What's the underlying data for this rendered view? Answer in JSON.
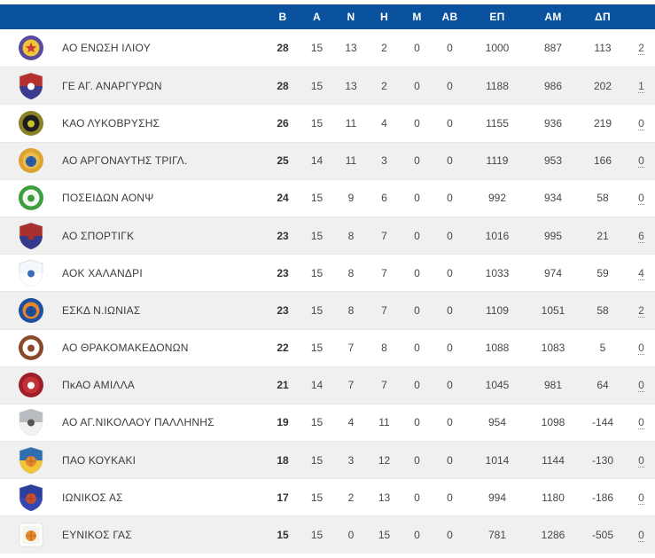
{
  "table": {
    "header": {
      "bg": "#0a519e",
      "text_color": "#ffffff",
      "columns": [
        "Β",
        "Α",
        "Ν",
        "Η",
        "Μ",
        "ΑΒ",
        "ΕΠ",
        "ΑΜ",
        "ΔΠ"
      ]
    },
    "row_colors": {
      "odd": "#ffffff",
      "even": "#f0f0f0",
      "border": "#e8e8e8"
    },
    "rows": [
      {
        "team": "ΑΟ ΕΝΩΣΗ ΙΛΙΟΥ",
        "logo": {
          "icon": "club-badge-enosi-iliou",
          "type": "circle",
          "outer": "#5a4a9e",
          "inner": "#f0c53a",
          "accent": "#cc3a3a",
          "glyph": "star"
        },
        "stats": [
          "28",
          "15",
          "13",
          "2",
          "0",
          "0",
          "1000",
          "887",
          "113"
        ],
        "extra": "2"
      },
      {
        "team": "ΓΕ ΑΓ. ΑΝΑΡΓΥΡΩΝ",
        "logo": {
          "icon": "club-badge-ag-anargyron",
          "type": "shield",
          "outer": "#b5302c",
          "inner": "#3a3a8e",
          "accent": "#ffffff",
          "glyph": "dot"
        },
        "stats": [
          "28",
          "15",
          "13",
          "2",
          "0",
          "0",
          "1188",
          "986",
          "202"
        ],
        "extra": "1"
      },
      {
        "team": "ΚΑΟ ΛΥΚΟΒΡΥΣΗΣ",
        "logo": {
          "icon": "club-badge-lykovrysi",
          "type": "circle",
          "outer": "#8a8226",
          "inner": "#1d1d1d",
          "accent": "#c9c12a",
          "glyph": "dot"
        },
        "stats": [
          "26",
          "15",
          "11",
          "4",
          "0",
          "0",
          "1155",
          "936",
          "219"
        ],
        "extra": "0"
      },
      {
        "team": "ΑΟ ΑΡΓΟΝΑΥΤΗΣ ΤΡΙΓΛ.",
        "logo": {
          "icon": "club-badge-argonaftis",
          "type": "circle",
          "outer": "#dca32e",
          "inner": "#e9bc52",
          "accent": "#2c5faa",
          "glyph": "ball"
        },
        "stats": [
          "25",
          "14",
          "11",
          "3",
          "0",
          "0",
          "1119",
          "953",
          "166"
        ],
        "extra": "0"
      },
      {
        "team": "ΠΟΣΕΙΔΩΝ ΑΟΝΨ",
        "logo": {
          "icon": "club-badge-poseidon",
          "type": "circle",
          "outer": "#3e9e3e",
          "inner": "#f2f8f2",
          "accent": "#3e9e3e",
          "glyph": "dot"
        },
        "stats": [
          "24",
          "15",
          "9",
          "6",
          "0",
          "0",
          "992",
          "934",
          "58"
        ],
        "extra": "0"
      },
      {
        "team": "ΑΟ ΣΠΟΡΤΙΓΚ",
        "logo": {
          "icon": "club-badge-sporting",
          "type": "shield",
          "outer": "#a8302e",
          "inner": "#343a8c",
          "accent": "#a8302e",
          "glyph": "dot"
        },
        "stats": [
          "23",
          "15",
          "8",
          "7",
          "0",
          "0",
          "1016",
          "995",
          "21"
        ],
        "extra": "6"
      },
      {
        "team": "ΑΟΚ ΧΑΛΑΝΔΡΙ",
        "logo": {
          "icon": "club-badge-chalandri",
          "type": "shield",
          "outer": "#f5f8fd",
          "inner": "#ffffff",
          "accent": "#3a6ab5",
          "glyph": "dot"
        },
        "stats": [
          "23",
          "15",
          "8",
          "7",
          "0",
          "0",
          "1033",
          "974",
          "59"
        ],
        "extra": "4"
      },
      {
        "team": "ΕΣΚΔ Ν.ΙΩΝΙΑΣ",
        "logo": {
          "icon": "club-badge-eskd-ionias",
          "type": "circle",
          "outer": "#1f4f9e",
          "inner": "#e8862a",
          "accent": "#1f4f9e",
          "glyph": "ball"
        },
        "stats": [
          "23",
          "15",
          "8",
          "7",
          "0",
          "0",
          "1109",
          "1051",
          "58"
        ],
        "extra": "2"
      },
      {
        "team": "ΑΟ ΘΡΑΚΟΜΑΚΕΔΟΝΩΝ",
        "logo": {
          "icon": "club-badge-thrakomakedonon",
          "type": "circle",
          "outer": "#8a4a2a",
          "inner": "#ffffff",
          "accent": "#8a4a2a",
          "glyph": "dot"
        },
        "stats": [
          "22",
          "15",
          "7",
          "8",
          "0",
          "0",
          "1088",
          "1083",
          "5"
        ],
        "extra": "0"
      },
      {
        "team": "ΠκΑΟ ΑΜΙΛΛΑ",
        "logo": {
          "icon": "club-badge-amilla",
          "type": "circle",
          "outer": "#9e1f28",
          "inner": "#c23038",
          "accent": "#ffffff",
          "glyph": "dot"
        },
        "stats": [
          "21",
          "14",
          "7",
          "7",
          "0",
          "0",
          "1045",
          "981",
          "64"
        ],
        "extra": "0"
      },
      {
        "team": "ΑΟ ΑΓ.ΝΙΚΟΛΑΟΥ ΠΑΛΛΗΝΗΣ",
        "logo": {
          "icon": "club-badge-ag-nikolaou",
          "type": "shield",
          "outer": "#b8bcc0",
          "inner": "#f2f2f2",
          "accent": "#555555",
          "glyph": "dot"
        },
        "stats": [
          "19",
          "15",
          "4",
          "11",
          "0",
          "0",
          "954",
          "1098",
          "-144"
        ],
        "extra": "0"
      },
      {
        "team": "ΠΑΟ ΚΟΥΚΑΚΙ",
        "logo": {
          "icon": "club-badge-koukaki",
          "type": "shield",
          "outer": "#2f6fb0",
          "inner": "#f0c53a",
          "accent": "#e8872a",
          "glyph": "ball"
        },
        "stats": [
          "18",
          "15",
          "3",
          "12",
          "0",
          "0",
          "1014",
          "1144",
          "-130"
        ],
        "extra": "0"
      },
      {
        "team": "ΙΩΝΙΚΟΣ ΑΣ",
        "logo": {
          "icon": "club-badge-ionikos",
          "type": "shield",
          "outer": "#2b3f9e",
          "inner": "#3448b0",
          "accent": "#c85030",
          "glyph": "ball"
        },
        "stats": [
          "17",
          "15",
          "2",
          "13",
          "0",
          "0",
          "994",
          "1180",
          "-186"
        ],
        "extra": "0"
      },
      {
        "team": "ΕΥΝΙΚΟΣ ΓΑΣ",
        "logo": {
          "icon": "club-badge-eynikos",
          "type": "square",
          "outer": "#ffffff",
          "inner": "#f5f5f0",
          "accent": "#e8872a",
          "glyph": "ball"
        },
        "stats": [
          "15",
          "15",
          "0",
          "15",
          "0",
          "0",
          "781",
          "1286",
          "-505"
        ],
        "extra": "0"
      }
    ]
  }
}
